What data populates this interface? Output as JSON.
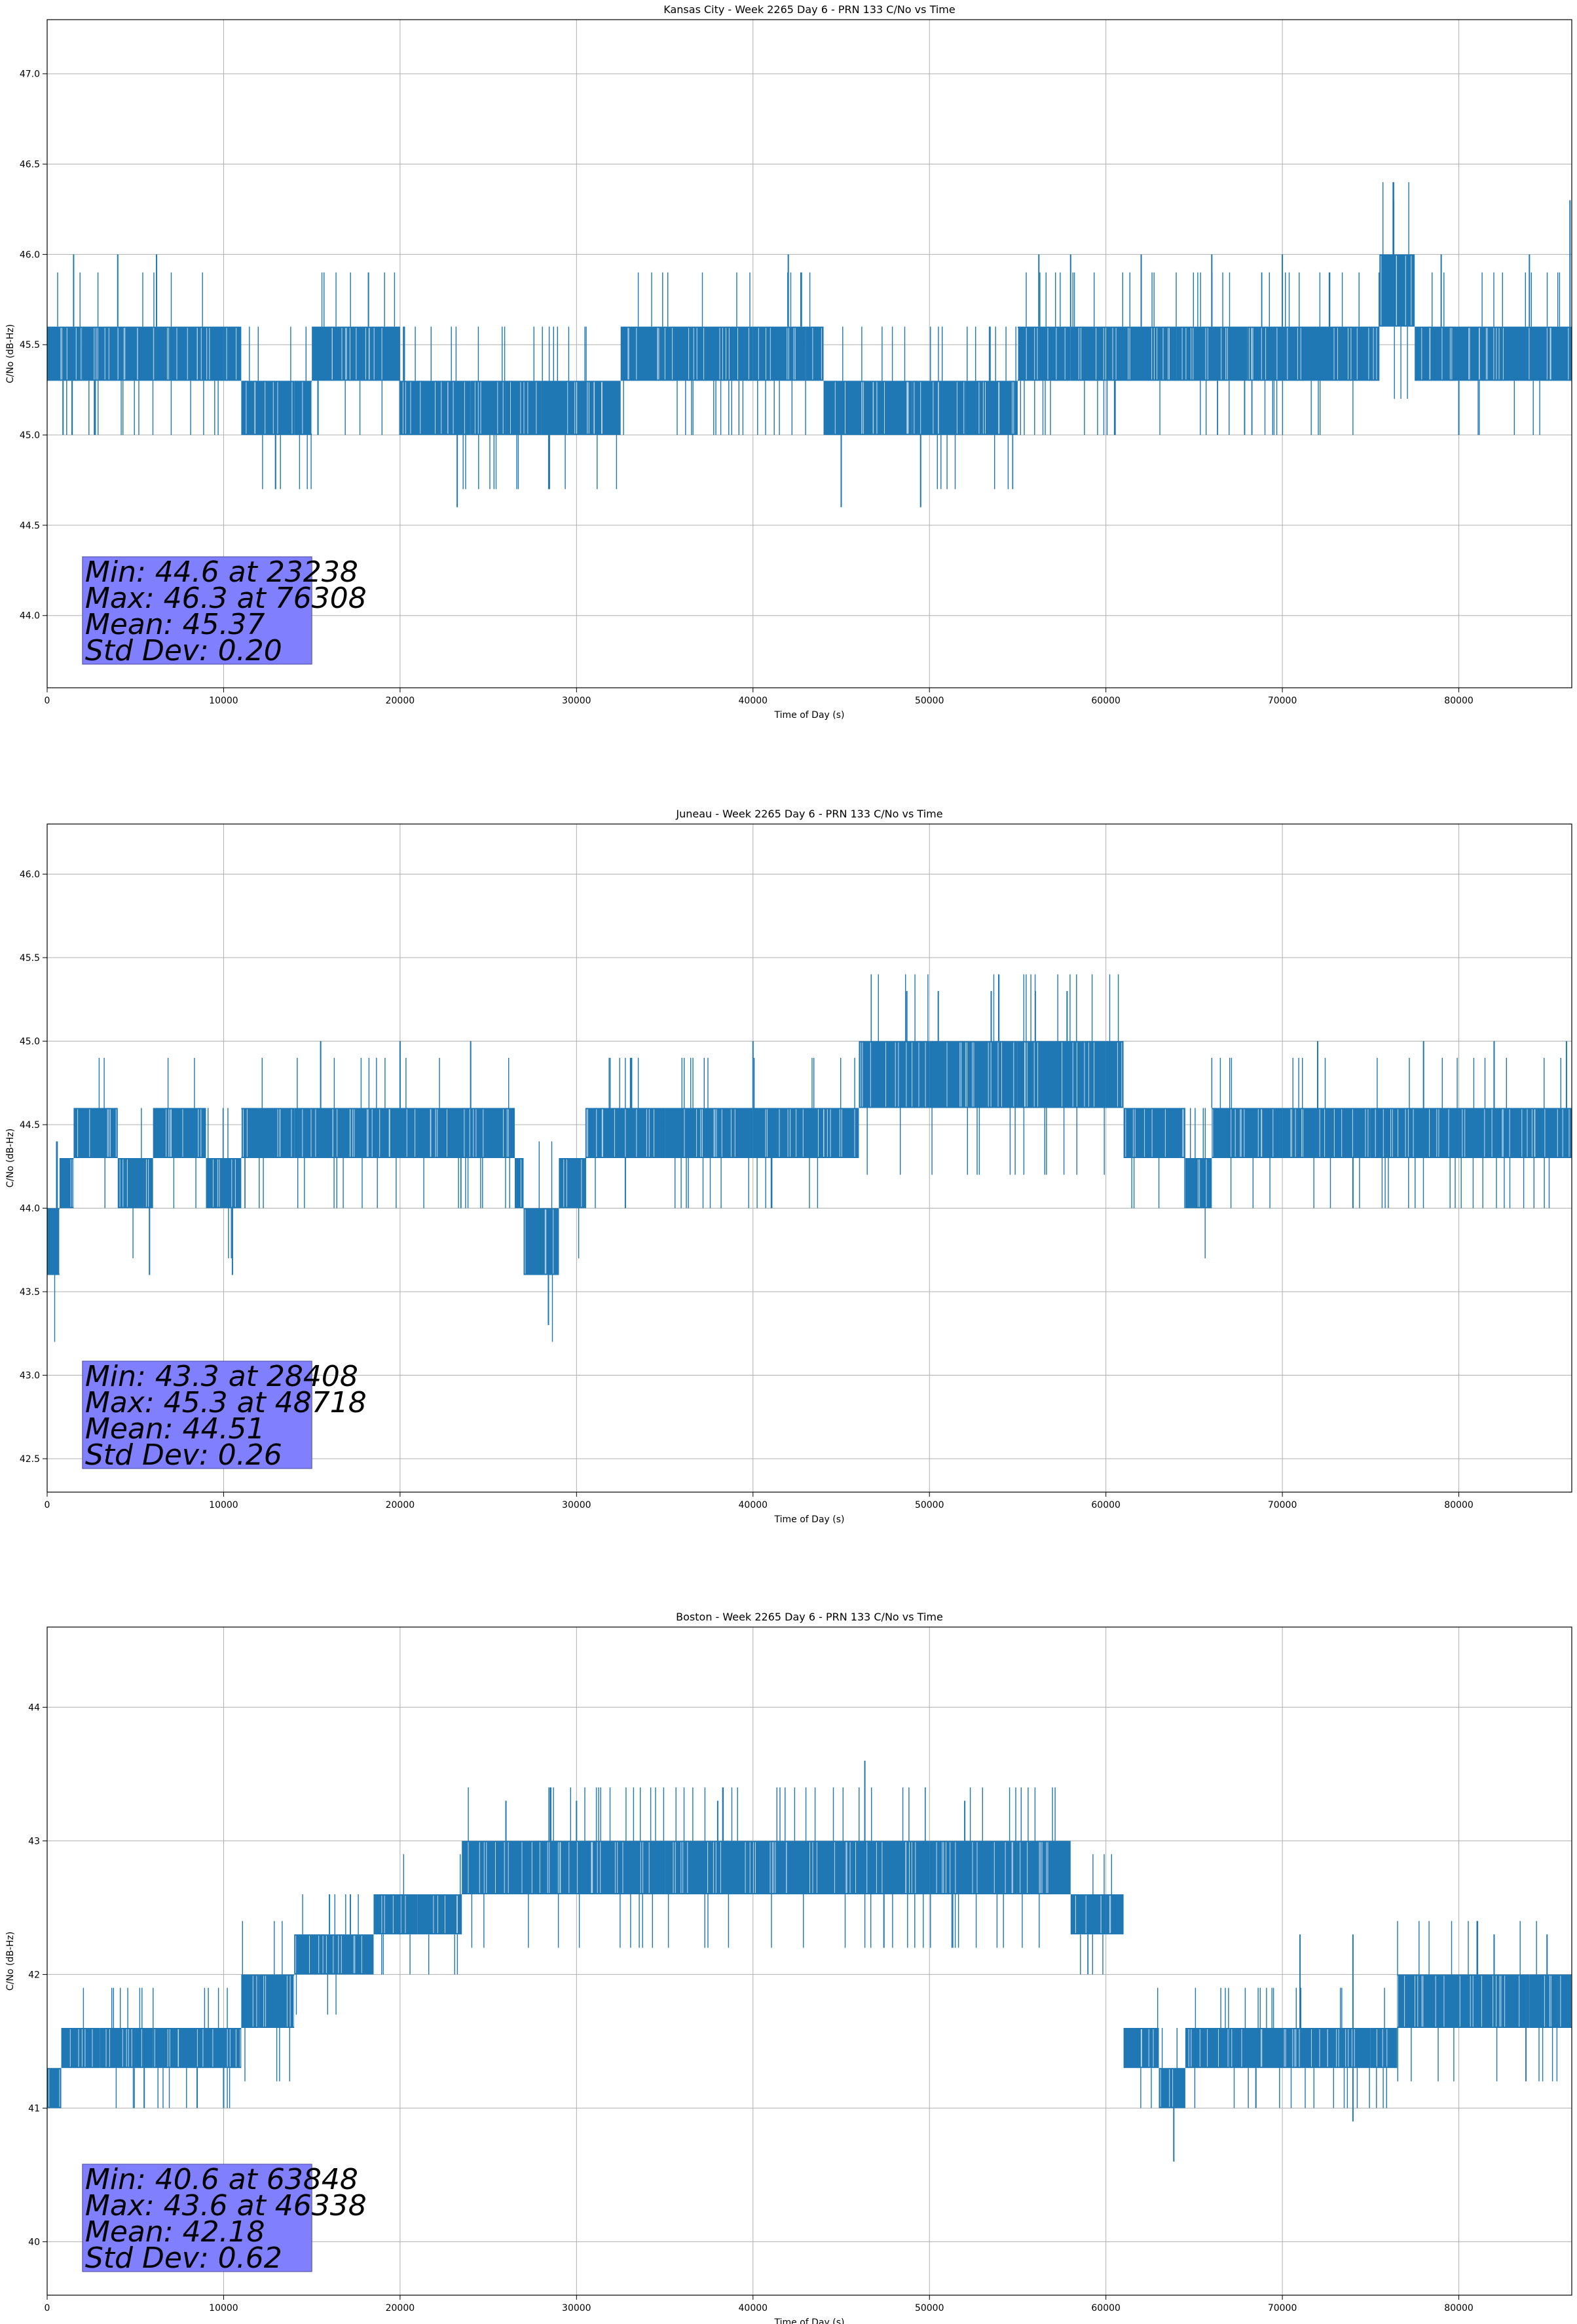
{
  "chart_data": [
    {
      "type": "line",
      "title": "Kansas City - Week 2265 Day 6 - PRN 133 C/No vs Time",
      "xlabel": "Time of Day (s)",
      "ylabel": "C/No (dB-Hz)",
      "xlim": [
        0,
        86400
      ],
      "ylim": [
        43.6,
        47.3
      ],
      "xticks": [
        0,
        10000,
        20000,
        30000,
        40000,
        50000,
        60000,
        70000,
        80000
      ],
      "yticks": [
        "44.0",
        "44.5",
        "45.0",
        "45.5",
        "46.0",
        "46.5",
        "47.0"
      ],
      "grid": true,
      "color": "#1f77b4",
      "segments": [
        [
          0,
          45.3,
          45.6
        ],
        [
          2000,
          45.3,
          45.6
        ],
        [
          4000,
          45.3,
          45.6
        ],
        [
          6000,
          45.3,
          45.6
        ],
        [
          8000,
          45.3,
          45.6
        ],
        [
          10000,
          45.3,
          45.6
        ],
        [
          11000,
          45.0,
          45.3
        ],
        [
          14000,
          45.0,
          45.3
        ],
        [
          15000,
          45.3,
          45.6
        ],
        [
          18000,
          45.3,
          45.6
        ],
        [
          20000,
          45.0,
          45.3
        ],
        [
          24000,
          45.0,
          45.3
        ],
        [
          26000,
          45.0,
          45.3
        ],
        [
          28000,
          45.0,
          45.3
        ],
        [
          31000,
          45.0,
          45.3
        ],
        [
          32500,
          45.3,
          45.6
        ],
        [
          36000,
          45.3,
          45.6
        ],
        [
          40000,
          45.3,
          45.6
        ],
        [
          43000,
          45.3,
          45.6
        ],
        [
          44000,
          45.0,
          45.3
        ],
        [
          47000,
          45.0,
          45.3
        ],
        [
          49000,
          45.0,
          45.3
        ],
        [
          52000,
          45.0,
          45.3
        ],
        [
          55000,
          45.3,
          45.6
        ],
        [
          58000,
          45.3,
          45.6
        ],
        [
          60000,
          45.3,
          45.6
        ],
        [
          64000,
          45.3,
          45.6
        ],
        [
          68000,
          45.3,
          45.6
        ],
        [
          72000,
          45.3,
          45.6
        ],
        [
          75500,
          45.6,
          46.0
        ],
        [
          77500,
          45.3,
          45.6
        ],
        [
          81000,
          45.3,
          45.6
        ],
        [
          86400,
          45.3,
          45.6
        ]
      ],
      "spikes": [
        [
          1500,
          46.0
        ],
        [
          4000,
          46.0
        ],
        [
          6200,
          46.0
        ],
        [
          900,
          45.0
        ],
        [
          23238,
          44.6
        ],
        [
          42000,
          46.0
        ],
        [
          45000,
          44.6
        ],
        [
          49500,
          44.6
        ],
        [
          56200,
          46.0
        ],
        [
          58000,
          46.0
        ],
        [
          62000,
          46.0
        ],
        [
          66000,
          46.0
        ],
        [
          70000,
          46.0
        ],
        [
          76308,
          46.3
        ],
        [
          79000,
          46.0
        ],
        [
          84000,
          46.0
        ],
        [
          80000,
          45.0
        ],
        [
          86300,
          46.3
        ]
      ],
      "stats": [
        "Min: 44.6 at 23238",
        "Max: 46.3 at 76308",
        "Mean: 45.37",
        "Std Dev: 0.20"
      ]
    },
    {
      "type": "line",
      "title": "Juneau - Week 2265 Day 6 - PRN 133 C/No vs Time",
      "xlabel": "Time of Day (s)",
      "ylabel": "C/No (dB-Hz)",
      "xlim": [
        0,
        86400
      ],
      "ylim": [
        42.3,
        46.3
      ],
      "xticks": [
        0,
        10000,
        20000,
        30000,
        40000,
        50000,
        60000,
        70000,
        80000
      ],
      "yticks": [
        "42.5",
        "43.0",
        "43.5",
        "44.0",
        "44.5",
        "45.0",
        "45.5",
        "46.0"
      ],
      "grid": true,
      "color": "#1f77b4",
      "segments": [
        [
          0,
          43.6,
          44.0
        ],
        [
          700,
          44.0,
          44.3
        ],
        [
          1500,
          44.3,
          44.6
        ],
        [
          4000,
          44.0,
          44.3
        ],
        [
          6000,
          44.3,
          44.6
        ],
        [
          9000,
          44.0,
          44.3
        ],
        [
          11000,
          44.3,
          44.6
        ],
        [
          14000,
          44.3,
          44.6
        ],
        [
          18000,
          44.3,
          44.6
        ],
        [
          22000,
          44.3,
          44.6
        ],
        [
          26500,
          44.0,
          44.3
        ],
        [
          27000,
          43.6,
          44.0
        ],
        [
          29000,
          44.0,
          44.3
        ],
        [
          30500,
          44.3,
          44.6
        ],
        [
          35000,
          44.3,
          44.6
        ],
        [
          40000,
          44.3,
          44.6
        ],
        [
          46000,
          44.6,
          45.0
        ],
        [
          50000,
          44.6,
          45.0
        ],
        [
          55000,
          44.6,
          45.0
        ],
        [
          60000,
          44.6,
          45.0
        ],
        [
          61000,
          44.3,
          44.6
        ],
        [
          63000,
          44.3,
          44.6
        ],
        [
          64500,
          44.0,
          44.3
        ],
        [
          66000,
          44.3,
          44.6
        ],
        [
          70000,
          44.3,
          44.6
        ],
        [
          75000,
          44.3,
          44.6
        ],
        [
          80000,
          44.3,
          44.6
        ],
        [
          86400,
          44.3,
          44.6
        ]
      ],
      "spikes": [
        [
          5800,
          43.6
        ],
        [
          10500,
          43.6
        ],
        [
          15500,
          45.0
        ],
        [
          20000,
          45.0
        ],
        [
          24000,
          45.0
        ],
        [
          28408,
          43.3
        ],
        [
          40000,
          45.0
        ],
        [
          48718,
          45.3
        ],
        [
          50500,
          45.3
        ],
        [
          53500,
          45.3
        ],
        [
          56000,
          45.3
        ],
        [
          57800,
          45.3
        ],
        [
          72000,
          45.0
        ],
        [
          78000,
          45.0
        ],
        [
          82000,
          45.0
        ],
        [
          86100,
          45.0
        ],
        [
          74000,
          44.0
        ]
      ],
      "stats": [
        "Min: 43.3 at 28408",
        "Max: 45.3 at 48718",
        "Mean: 44.51",
        "Std Dev: 0.26"
      ]
    },
    {
      "type": "line",
      "title": "Boston - Week 2265 Day 6 - PRN 133 C/No vs Time",
      "xlabel": "Time of Day (s)",
      "ylabel": "C/No (dB-Hz)",
      "xlim": [
        0,
        86400
      ],
      "ylim": [
        39.6,
        44.6
      ],
      "xticks": [
        0,
        10000,
        20000,
        30000,
        40000,
        50000,
        60000,
        70000,
        80000
      ],
      "yticks": [
        "40",
        "41",
        "42",
        "43",
        "44"
      ],
      "grid": true,
      "color": "#1f77b4",
      "segments": [
        [
          0,
          41.0,
          41.3
        ],
        [
          800,
          41.3,
          41.6
        ],
        [
          3000,
          41.3,
          41.6
        ],
        [
          6000,
          41.3,
          41.6
        ],
        [
          9000,
          41.3,
          41.6
        ],
        [
          11000,
          41.6,
          42.0
        ],
        [
          12000,
          41.6,
          42.0
        ],
        [
          14000,
          42.0,
          42.3
        ],
        [
          16500,
          42.0,
          42.3
        ],
        [
          18500,
          42.3,
          42.6
        ],
        [
          21000,
          42.3,
          42.6
        ],
        [
          23500,
          42.6,
          43.0
        ],
        [
          26000,
          42.6,
          43.0
        ],
        [
          30000,
          42.6,
          43.0
        ],
        [
          35000,
          42.6,
          43.0
        ],
        [
          40000,
          42.6,
          43.0
        ],
        [
          45000,
          42.6,
          43.0
        ],
        [
          50000,
          42.6,
          43.0
        ],
        [
          55000,
          42.6,
          43.0
        ],
        [
          58000,
          42.3,
          42.6
        ],
        [
          60000,
          42.3,
          42.6
        ],
        [
          61000,
          41.3,
          41.6
        ],
        [
          62500,
          41.3,
          41.6
        ],
        [
          63000,
          41.0,
          41.3
        ],
        [
          64500,
          41.3,
          41.6
        ],
        [
          67000,
          41.3,
          41.6
        ],
        [
          71000,
          41.3,
          41.6
        ],
        [
          75000,
          41.3,
          41.6
        ],
        [
          76500,
          41.6,
          42.0
        ],
        [
          80000,
          41.6,
          42.0
        ],
        [
          84000,
          41.6,
          42.0
        ],
        [
          86400,
          41.6,
          42.0
        ]
      ],
      "spikes": [
        [
          5500,
          41.0
        ],
        [
          8500,
          41.0
        ],
        [
          10000,
          41.0
        ],
        [
          16000,
          42.6
        ],
        [
          20000,
          42.6
        ],
        [
          26000,
          43.3
        ],
        [
          30000,
          43.3
        ],
        [
          38000,
          43.3
        ],
        [
          46338,
          43.6
        ],
        [
          52000,
          43.3
        ],
        [
          63848,
          40.6
        ],
        [
          68500,
          41.0
        ],
        [
          74000,
          40.9
        ],
        [
          71000,
          42.3
        ],
        [
          74000,
          42.3
        ],
        [
          82000,
          42.3
        ],
        [
          85000,
          42.3
        ]
      ],
      "stats": [
        "Min: 40.6 at 63848",
        "Max: 43.6 at 46338",
        "Mean: 42.18",
        "Std Dev: 0.62"
      ]
    }
  ]
}
